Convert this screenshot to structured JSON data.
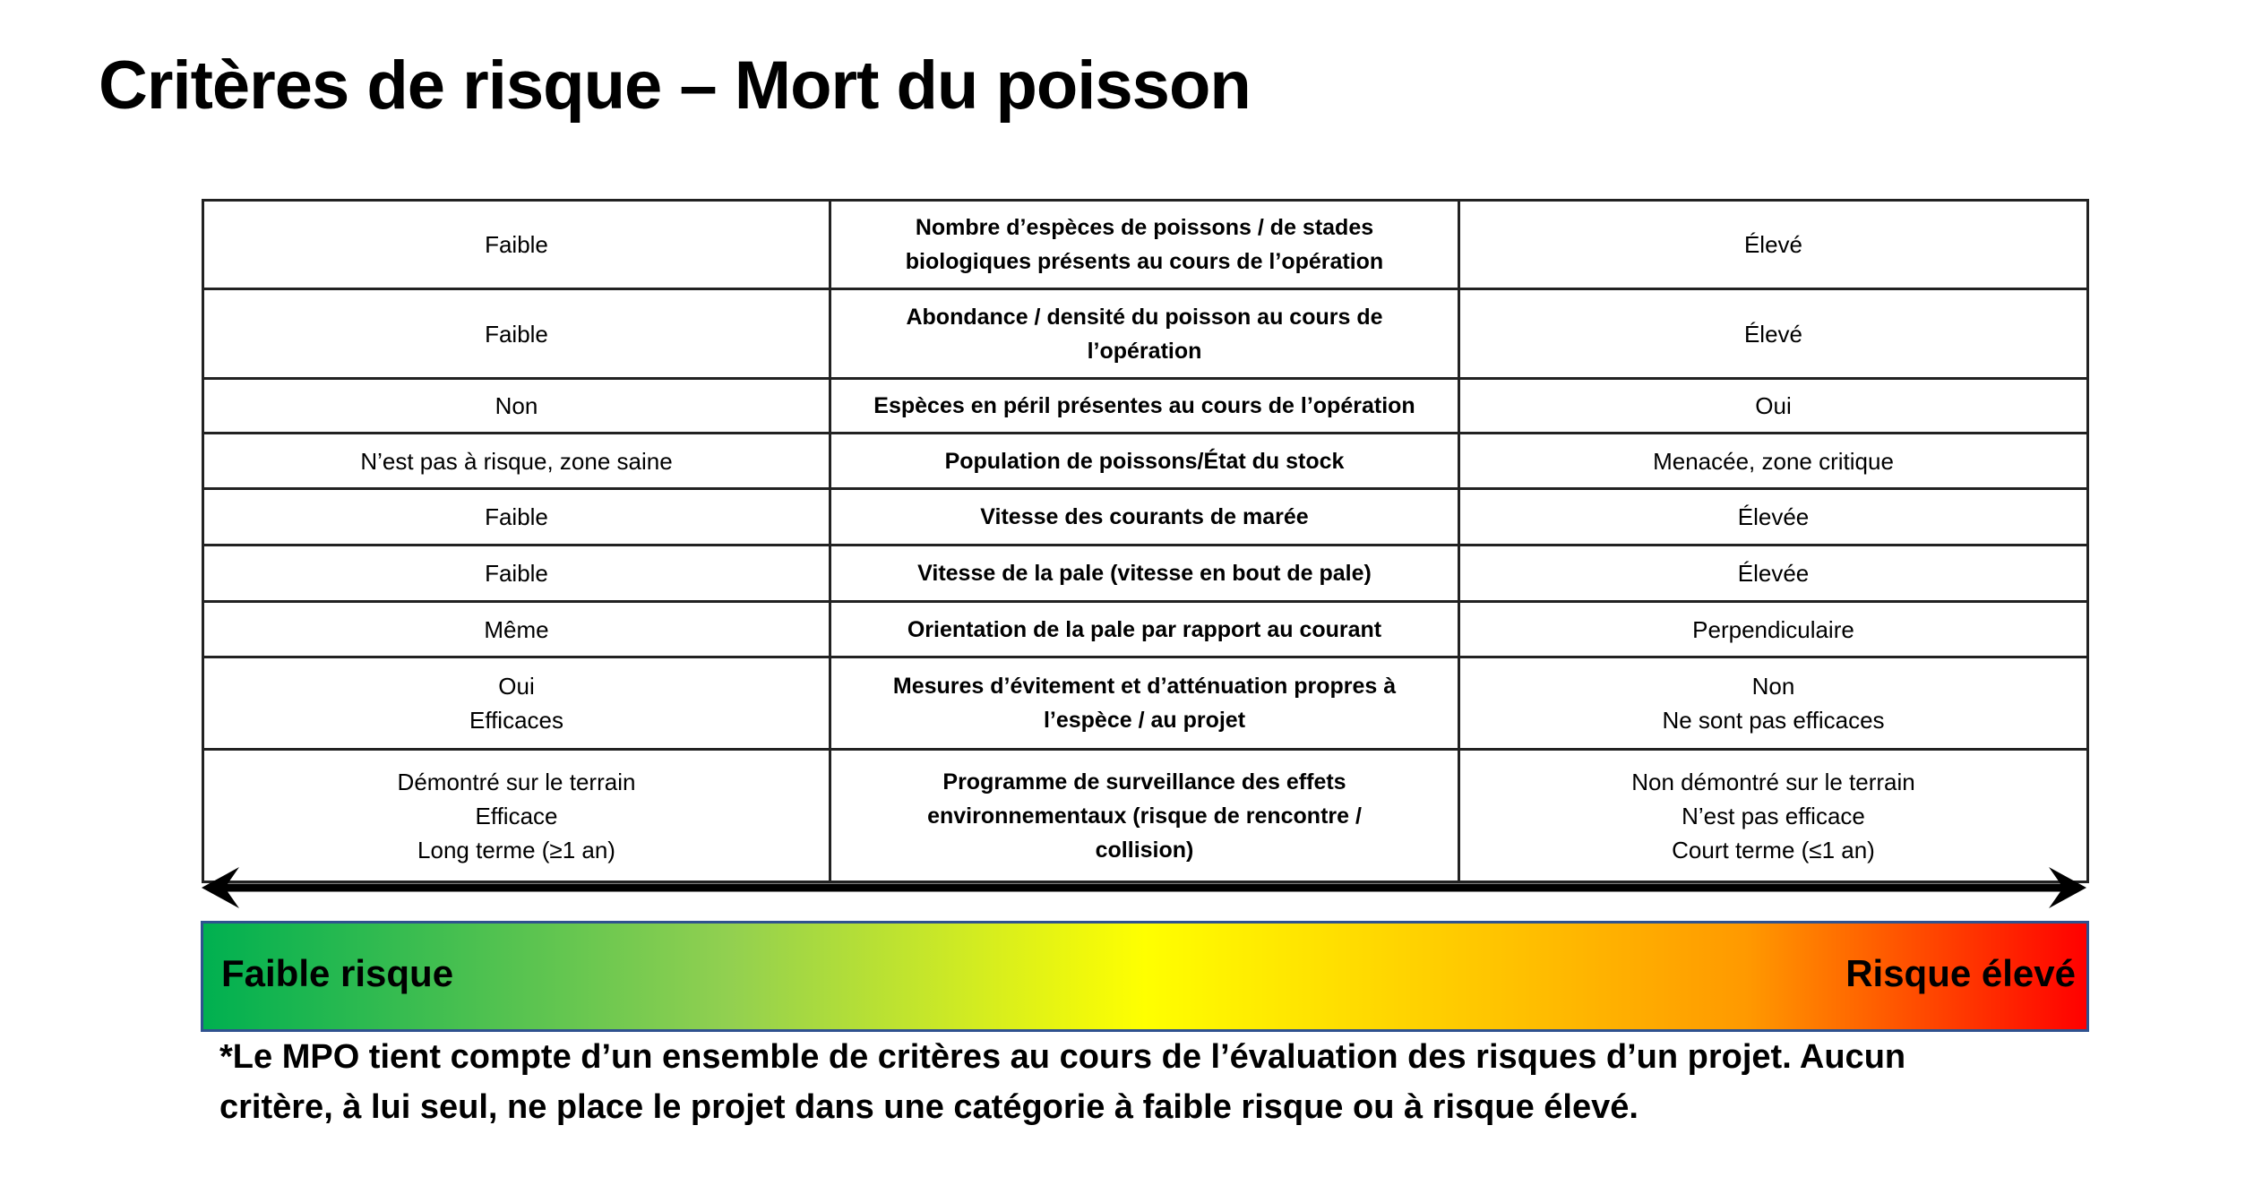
{
  "title": "Critères de risque – Mort du poisson",
  "rows": [
    {
      "low": [
        "Faible"
      ],
      "criterion": [
        "Nombre d’espèces de poissons / de stades",
        "biologiques présents au cours de l’opération"
      ],
      "high": [
        "Élevé"
      ]
    },
    {
      "low": [
        "Faible"
      ],
      "criterion": [
        "Abondance / densité du poisson au cours de",
        "l’opération"
      ],
      "high": [
        "Élevé"
      ]
    },
    {
      "low": [
        "Non"
      ],
      "criterion": [
        "Espèces en péril présentes au cours de l’opération"
      ],
      "high": [
        "Oui"
      ]
    },
    {
      "low": [
        "N’est pas à risque, zone saine"
      ],
      "criterion": [
        "Population de poissons/État du stock"
      ],
      "high": [
        "Menacée, zone critique"
      ]
    },
    {
      "low": [
        "Faible"
      ],
      "criterion": [
        "Vitesse des courants de marée"
      ],
      "high": [
        "Élevée"
      ]
    },
    {
      "low": [
        "Faible"
      ],
      "criterion": [
        "Vitesse de la pale (vitesse en bout de pale)"
      ],
      "high": [
        "Élevée"
      ]
    },
    {
      "low": [
        "Même"
      ],
      "criterion": [
        "Orientation de la pale par rapport au courant"
      ],
      "high": [
        "Perpendiculaire"
      ]
    },
    {
      "low": [
        "Oui",
        "Efficaces"
      ],
      "criterion": [
        "Mesures d’évitement et d’atténuation propres à",
        "l’espèce / au projet"
      ],
      "high": [
        "Non",
        "Ne sont pas efficaces"
      ]
    },
    {
      "low": [
        "Démontré sur le terrain",
        "Efficace",
        "Long terme (≥1 an)"
      ],
      "criterion": [
        "Programme de surveillance des effets",
        "environnementaux (risque de rencontre /",
        "collision)"
      ],
      "high": [
        "Non démontré sur le terrain",
        "N’est pas efficace",
        "Court terme (≤1 an)"
      ]
    }
  ],
  "scale": {
    "low_label": "Faible risque",
    "high_label": "Risque élevé",
    "colors": {
      "low": "#00b050",
      "mid": "#ffff00",
      "high": "#ff0000"
    }
  },
  "note": [
    "*Le MPO tient compte d’un ensemble de critères au cours de l’évaluation des risques d’un projet. Aucun",
    "critère, à lui seul, ne place le projet dans une catégorie à faible risque ou à risque élevé."
  ]
}
